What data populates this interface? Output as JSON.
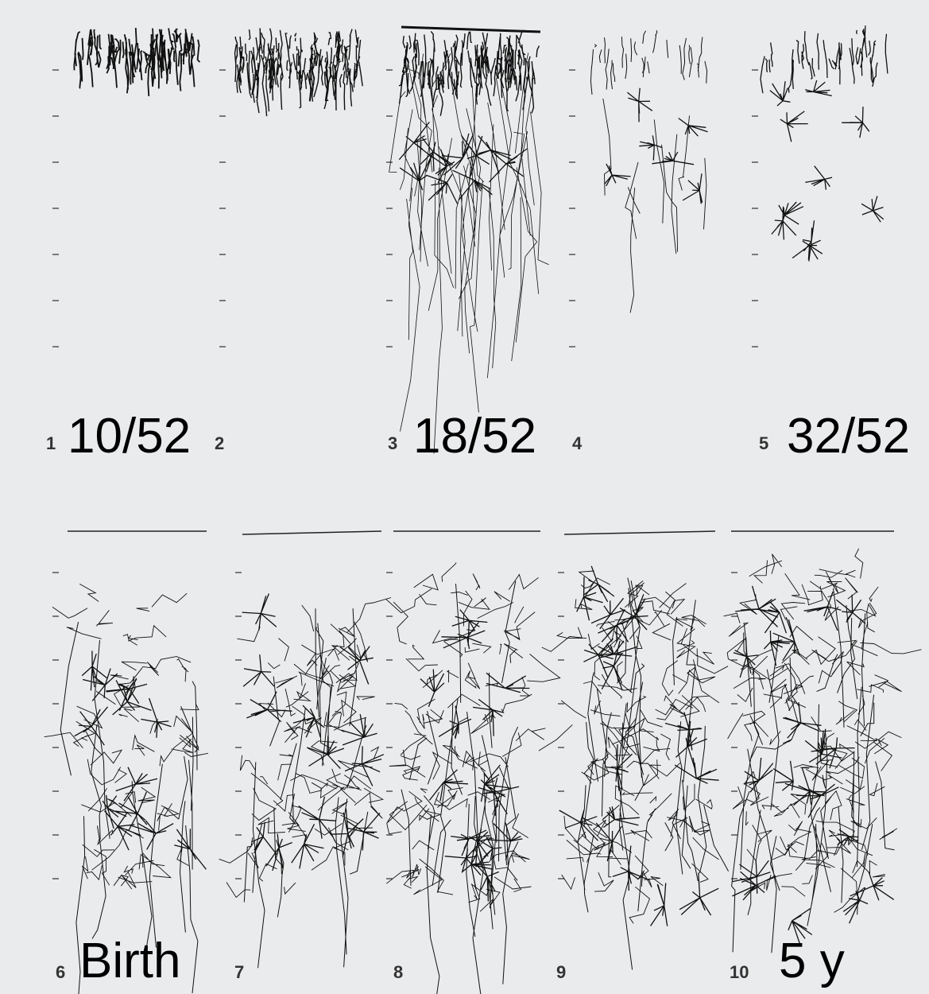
{
  "panels": [
    {
      "number": "1",
      "label": "10/52"
    },
    {
      "number": "2"
    },
    {
      "number": "3",
      "label": "18/52"
    },
    {
      "number": "4"
    },
    {
      "number": "5",
      "label": "32/52"
    },
    {
      "number": "6",
      "label": "Birth"
    },
    {
      "number": "7"
    },
    {
      "number": "8"
    },
    {
      "number": "9"
    },
    {
      "number": "10",
      "label": "5 y"
    }
  ]
}
